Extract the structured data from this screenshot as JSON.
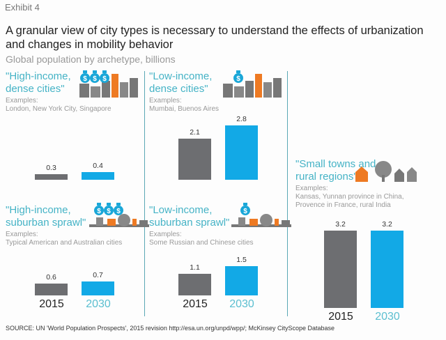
{
  "header": {
    "exhibit": "Exhibit 4",
    "title": "A granular view of city types is necessary to understand the effects of urbanization and changes in mobility behavior",
    "subtitle": "Global population by archetype, billions"
  },
  "colors": {
    "series_2015": "#6d6e71",
    "series_2030": "#12a9e6",
    "title_text": "#45b3c6",
    "year_2030_text": "#5bbfd0"
  },
  "chart_data": {
    "type": "bar",
    "categories": [
      "2015",
      "2030"
    ],
    "unit": "billions",
    "panels": [
      {
        "title": "\"High-income, dense cities\"",
        "examples_label": "Examples:",
        "examples": "London, New York City, Singapore",
        "values": [
          0.3,
          0.4
        ],
        "icon": "dense-city-icon-three-money-bags"
      },
      {
        "title": "\"Low-income, dense cities\"",
        "examples_label": "Examples:",
        "examples": "Mumbai, Buenos Aires",
        "values": [
          2.1,
          2.8
        ],
        "icon": "dense-city-icon-one-money-bag"
      },
      {
        "title": "\"High-income, suburban sprawl\"",
        "examples_label": "Examples:",
        "examples": "Typical American and Australian cities",
        "values": [
          0.6,
          0.7
        ],
        "icon": "suburb-icon-three-money-bags"
      },
      {
        "title": "\"Low-income, suburban sprawl\"",
        "examples_label": "Examples:",
        "examples": "Some Russian and Chinese cities",
        "values": [
          1.1,
          1.5
        ],
        "icon": "suburb-icon-one-money-bag"
      },
      {
        "title": "\"Small towns and rural regions\"",
        "examples_label": "Examples:",
        "examples": "Kansas, Yunnan province in China, Provence in France, rural India",
        "values": [
          3.2,
          3.2
        ],
        "icon": "small-town-icon"
      }
    ]
  },
  "footer": {
    "source": "SOURCE: UN 'World Population Prospects', 2015 revision http://esa.un.org/unpd/wpp/; McKinsey CityScope Database"
  }
}
